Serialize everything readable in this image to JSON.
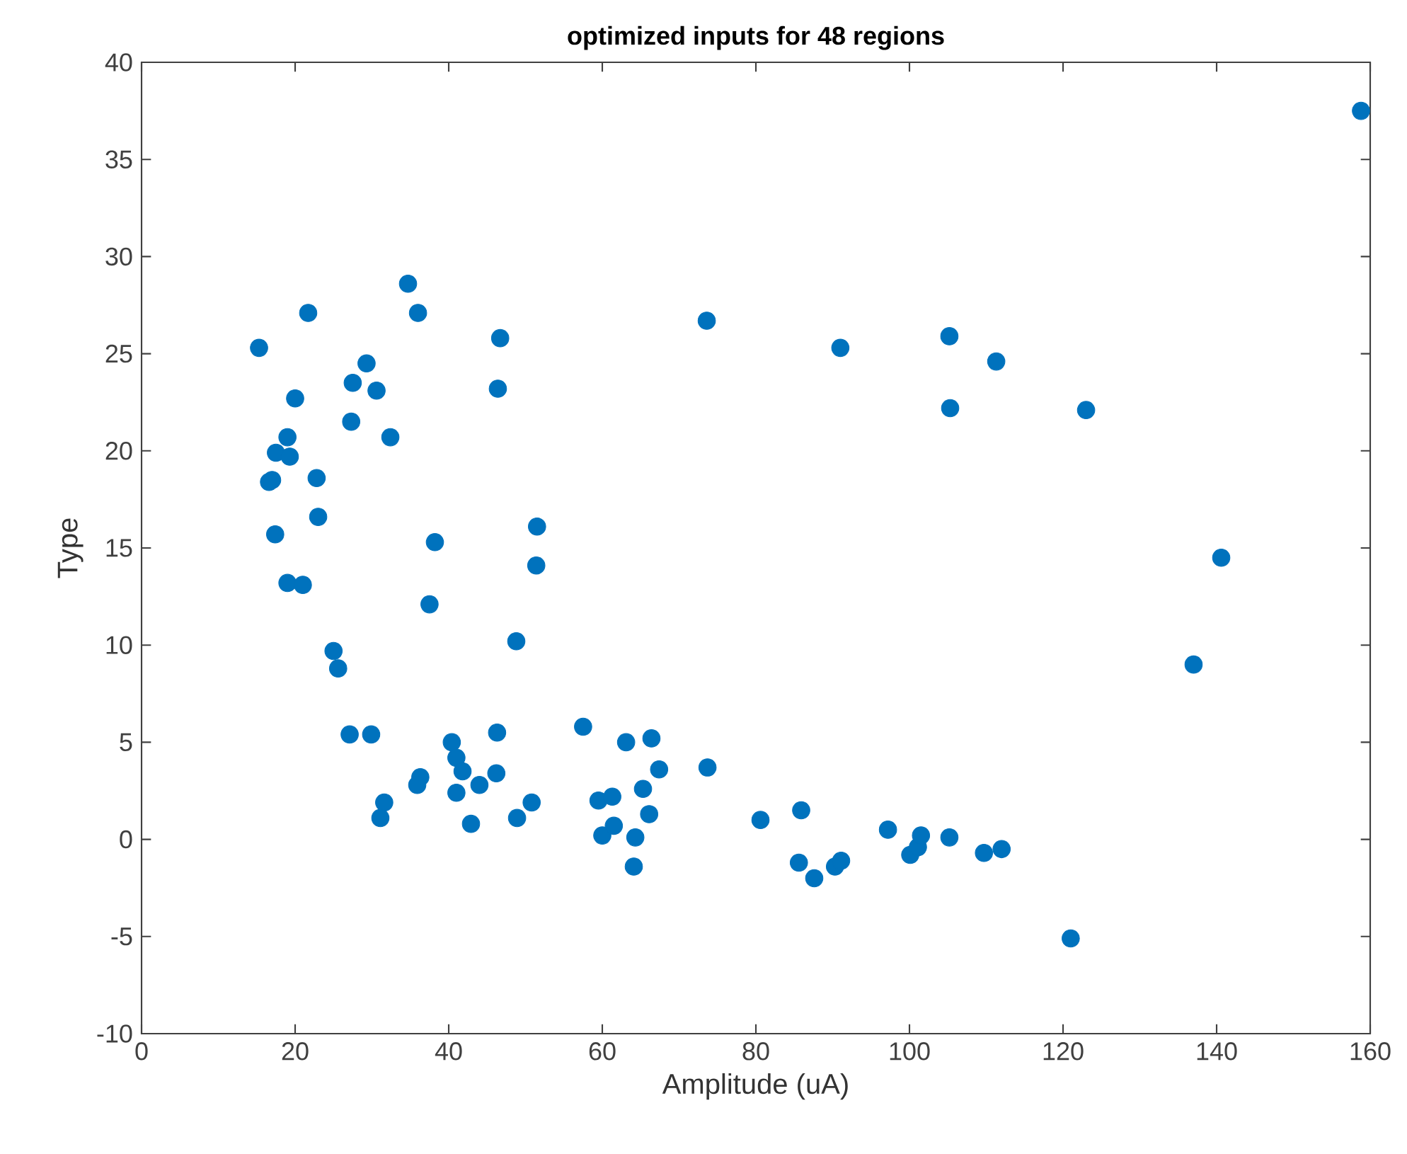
{
  "chart_data": {
    "type": "scatter",
    "title": "optimized inputs for 48 regions",
    "xlabel": "Amplitude (uA)",
    "ylabel": "Type",
    "xlim": [
      0,
      160
    ],
    "ylim": [
      -10,
      40
    ],
    "xticks": [
      0,
      20,
      40,
      60,
      80,
      100,
      120,
      140,
      160
    ],
    "yticks": [
      -10,
      -5,
      0,
      5,
      10,
      15,
      20,
      25,
      30,
      35,
      40
    ],
    "marker": "circle",
    "series": [
      {
        "color": "#0072bd",
        "x": [
          15.3,
          21.7,
          34.7,
          36,
          29.3,
          27.5,
          30.6,
          46.7,
          46.4,
          20,
          19,
          17.5,
          19.3,
          27.3,
          32.4,
          16.6,
          17,
          22.8,
          23,
          17.4,
          38.2,
          19,
          21,
          37.5,
          51.5,
          51.4,
          48.8,
          25,
          25.6,
          27.1,
          29.9,
          40.4,
          41,
          41.8,
          36.3,
          35.9,
          41,
          44,
          46.3,
          46.2,
          31.6,
          31.1,
          42.9,
          48.9,
          50.8,
          57.5,
          63.1,
          66.4,
          67.4,
          73.7,
          59.5,
          61.3,
          65.3,
          66.1,
          60,
          61.5,
          64.3,
          64.1,
          73.6,
          91,
          105.2,
          111.3,
          105.3,
          123,
          140.6,
          137,
          158.8,
          80.6,
          85.9,
          85.6,
          87.6,
          90.3,
          91.1,
          97.2,
          100.1,
          101.1,
          101.5,
          105.2,
          109.7,
          112,
          121
        ],
        "values": [
          25.3,
          27.1,
          28.6,
          27.1,
          24.5,
          23.5,
          23.1,
          25.8,
          23.2,
          22.7,
          20.7,
          19.9,
          19.7,
          21.5,
          20.7,
          18.4,
          18.5,
          18.6,
          16.6,
          15.7,
          15.3,
          13.2,
          13.1,
          12.1,
          16.1,
          14.1,
          10.2,
          9.7,
          8.8,
          5.4,
          5.4,
          5,
          4.2,
          3.5,
          3.2,
          2.8,
          2.4,
          2.8,
          5.5,
          3.4,
          1.9,
          1.1,
          0.8,
          1.1,
          1.9,
          5.8,
          5,
          5.2,
          3.6,
          3.7,
          2,
          2.2,
          2.6,
          1.3,
          0.2,
          0.7,
          0.1,
          -1.4,
          26.7,
          25.3,
          25.9,
          24.6,
          22.2,
          22.1,
          14.5,
          9,
          37.5,
          1,
          1.5,
          -1.2,
          -2,
          -1.4,
          -1.1,
          0.5,
          -0.8,
          -0.4,
          0.2,
          0.1,
          -0.7,
          -0.5,
          -5.1
        ]
      }
    ]
  }
}
